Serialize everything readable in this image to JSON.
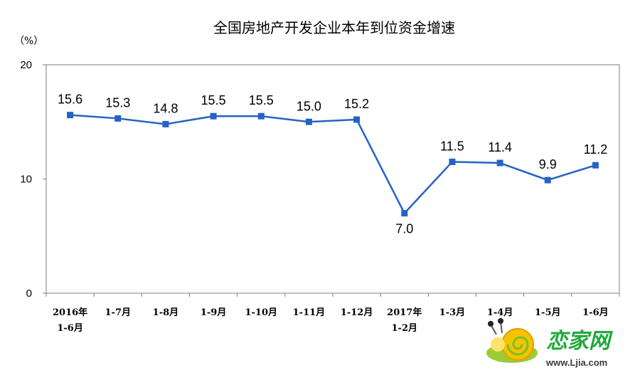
{
  "chart_data": {
    "type": "line",
    "title": "全国房地产开发企业本年到位资金增速",
    "unit_label": "（%）",
    "xlabel": "",
    "ylabel": "",
    "ylim": [
      0,
      20
    ],
    "yticks": [
      "0",
      "10",
      "20"
    ],
    "grid": false,
    "categories": [
      [
        "2016年",
        "1-6月"
      ],
      [
        "1-7月"
      ],
      [
        "1-8月"
      ],
      [
        "1-9月"
      ],
      [
        "1-10月"
      ],
      [
        "1-11月"
      ],
      [
        "1-12月"
      ],
      [
        "2017年",
        "1-2月"
      ],
      [
        "1-3月"
      ],
      [
        "1-4月"
      ],
      [
        "1-5月"
      ],
      [
        "1-6月"
      ]
    ],
    "series": [
      {
        "values": [
          15.6,
          15.3,
          14.8,
          15.5,
          15.5,
          15.0,
          15.2,
          7.0,
          11.5,
          11.4,
          9.9,
          11.2
        ],
        "labels": [
          "15.6",
          "15.3",
          "14.8",
          "15.5",
          "15.5",
          "15.0",
          "15.2",
          "7.0",
          "11.5",
          "11.4",
          "9.9",
          "11.2"
        ],
        "color": "#2463c4"
      }
    ]
  },
  "watermark": {
    "brand": "恋家网",
    "url": "www.Ljia.com",
    "icon": "snail-logo-icon"
  }
}
